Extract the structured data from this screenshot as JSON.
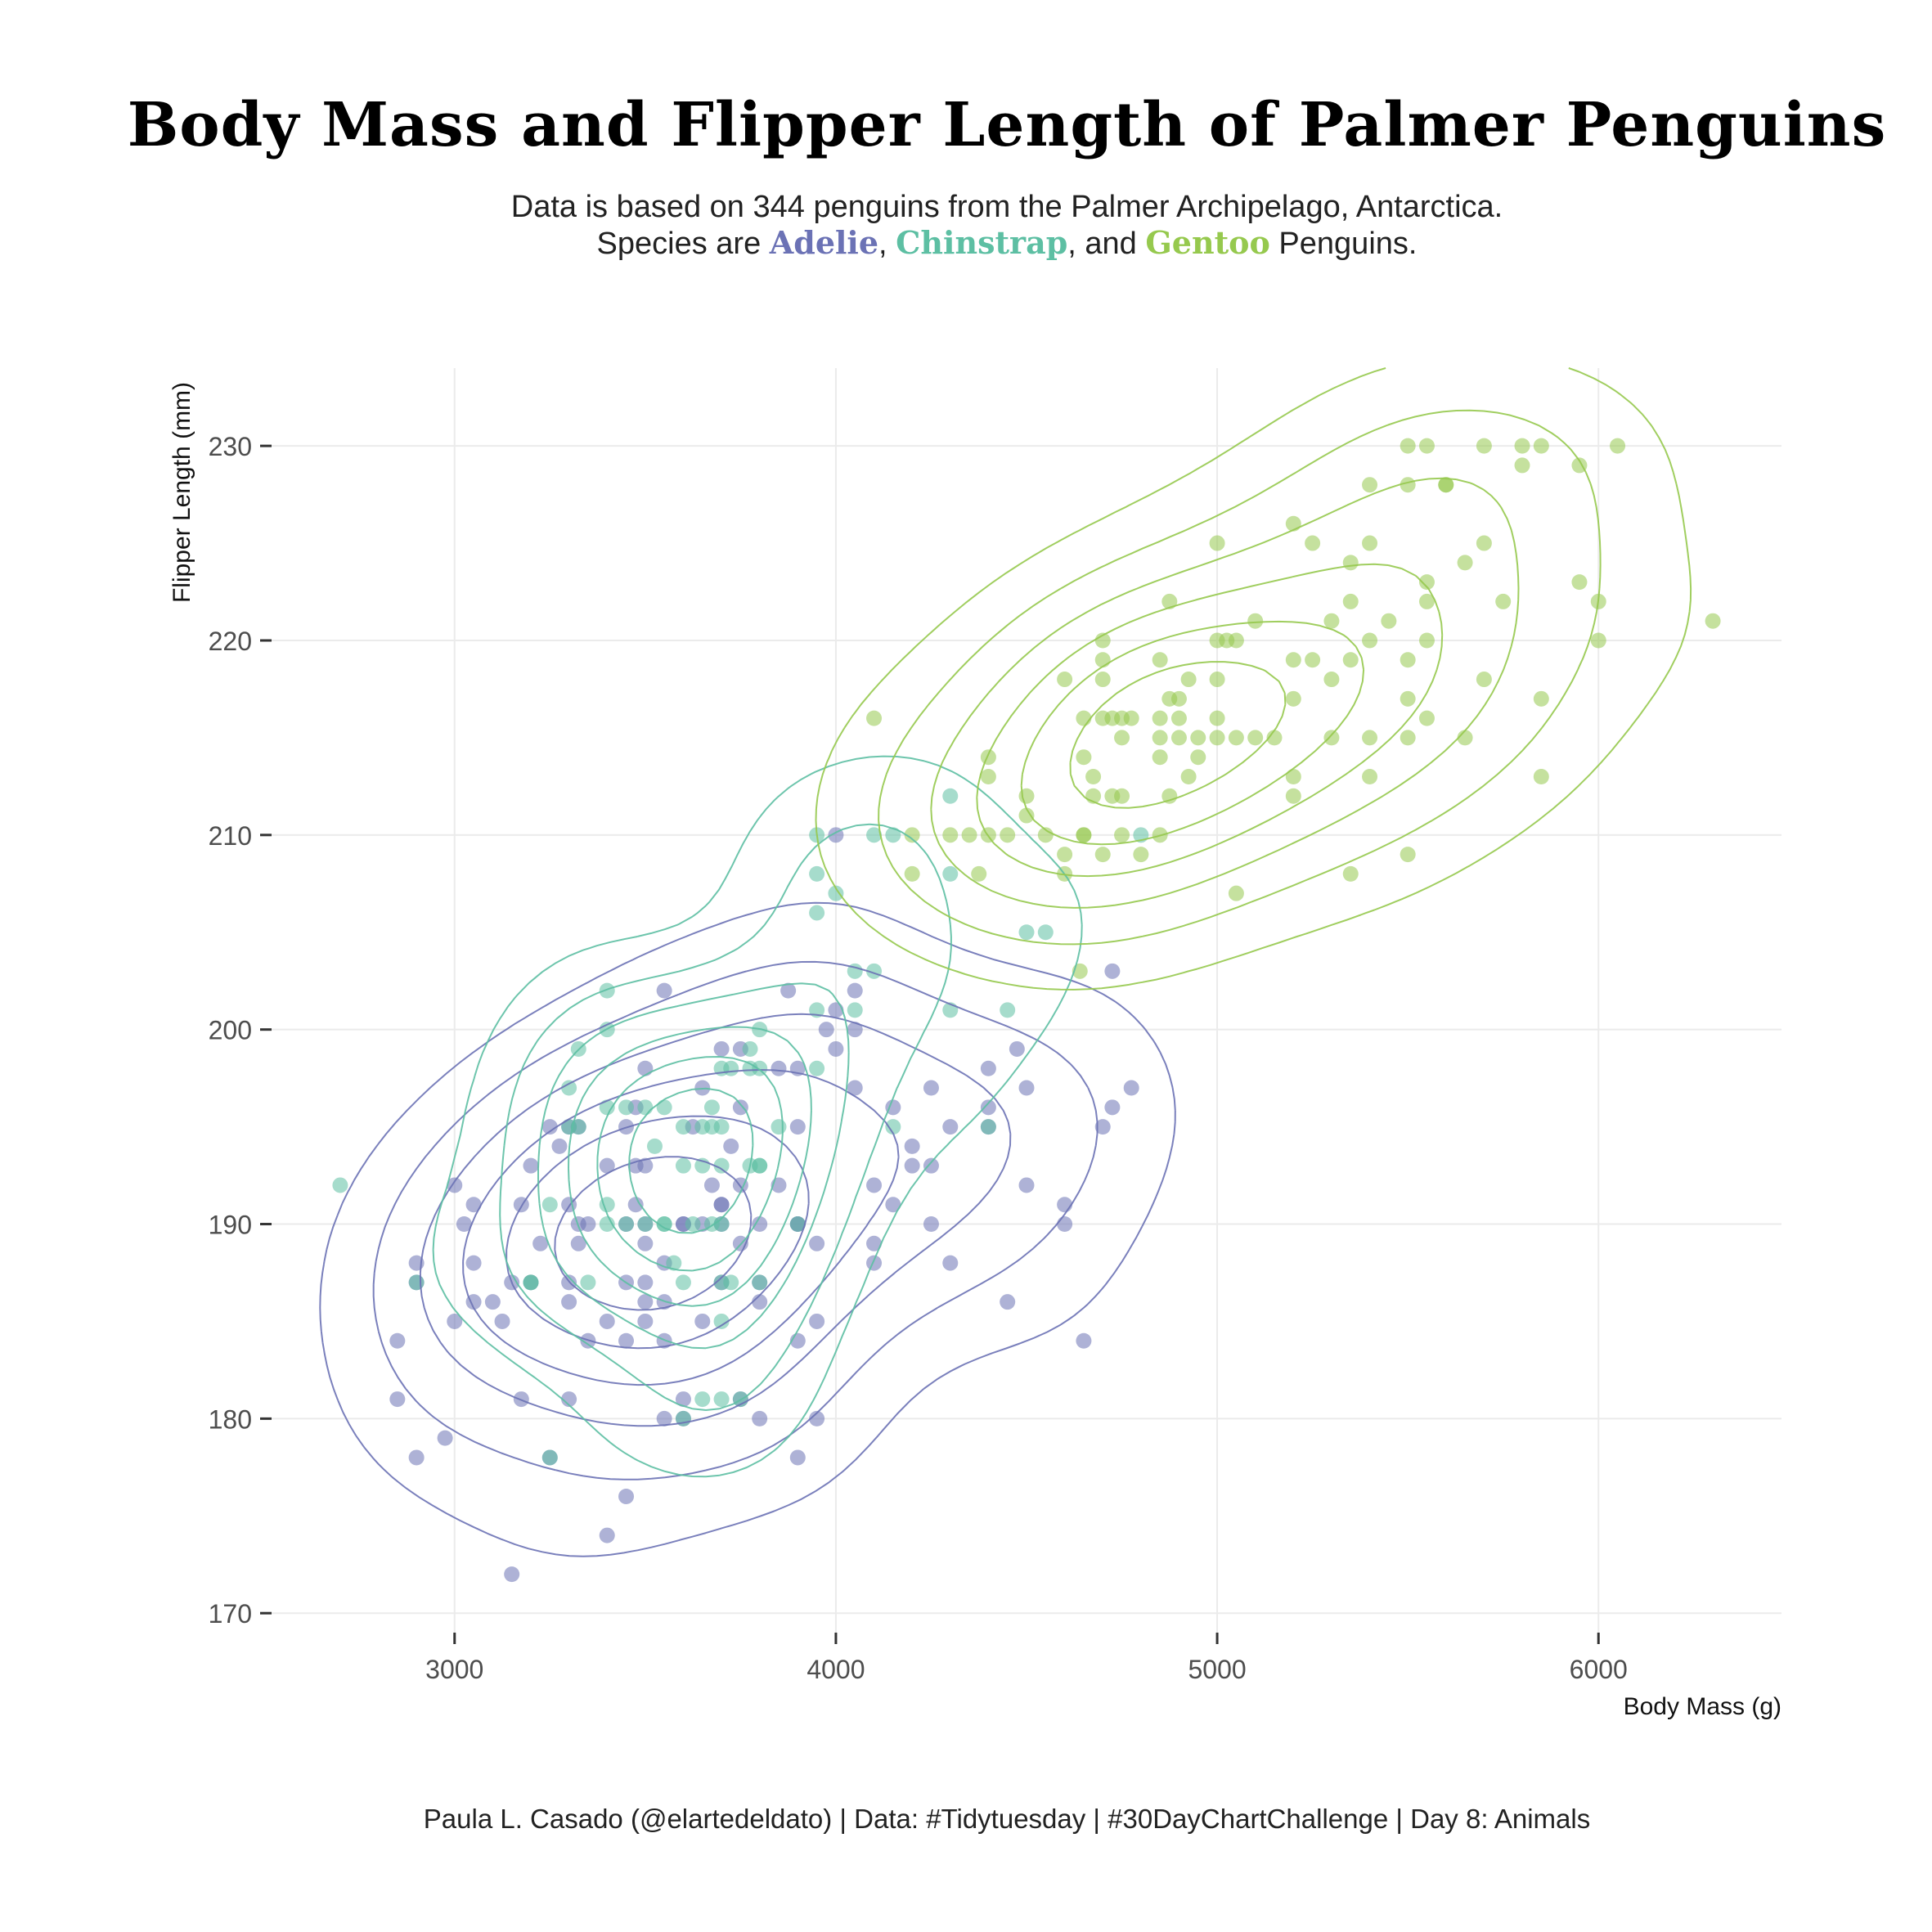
{
  "title": "Body Mass and Flipper Length of Palmer Penguins",
  "subtitle": {
    "line1": "Data is based on 344 penguins from the Palmer Archipelago, Antarctica.",
    "line2_prefix": "Species are ",
    "sep1": ", ",
    "sep2": ", and ",
    "line2_suffix": " Penguins."
  },
  "caption": "Paula L. Casado (@elartedeldato) | Data: #Tidytuesday | #30DayChartChallenge | Day 8: Animals",
  "colors": {
    "Adelie": "#6B72B5",
    "Chinstrap": "#5DBFA3",
    "Gentoo": "#96C94E",
    "grid": "#EBEBEB",
    "axis_text": "#4D4D4D"
  },
  "chart_data": {
    "type": "scatter",
    "xlabel": "Body Mass (g)",
    "ylabel": "Flipper Length (mm)",
    "xlim": [
      2520,
      6480
    ],
    "ylim": [
      169,
      234
    ],
    "xticks": [
      3000,
      4000,
      5000,
      6000
    ],
    "yticks": [
      170,
      180,
      190,
      200,
      210,
      220,
      230
    ],
    "grid": true,
    "legend": "none (species named in subtitle)",
    "series": [
      {
        "name": "Adelie",
        "color": "#6B72B5",
        "points": [
          [
            3150,
            172
          ],
          [
            3400,
            174
          ],
          [
            3450,
            176
          ],
          [
            2900,
            178
          ],
          [
            3250,
            178
          ],
          [
            3900,
            178
          ],
          [
            2975,
            179
          ],
          [
            3550,
            180
          ],
          [
            3600,
            180
          ],
          [
            3800,
            180
          ],
          [
            3950,
            180
          ],
          [
            2850,
            181
          ],
          [
            3175,
            181
          ],
          [
            3300,
            181
          ],
          [
            3600,
            181
          ],
          [
            3750,
            181
          ],
          [
            2850,
            184
          ],
          [
            3350,
            184
          ],
          [
            3450,
            184
          ],
          [
            3550,
            184
          ],
          [
            3900,
            184
          ],
          [
            4650,
            184
          ],
          [
            3400,
            185
          ],
          [
            3650,
            185
          ],
          [
            3950,
            185
          ],
          [
            3000,
            185
          ],
          [
            3125,
            185
          ],
          [
            3500,
            185
          ],
          [
            4450,
            186
          ],
          [
            3050,
            186
          ],
          [
            3100,
            186
          ],
          [
            3800,
            186
          ],
          [
            3300,
            186
          ],
          [
            3550,
            186
          ],
          [
            2900,
            187
          ],
          [
            3150,
            187
          ],
          [
            3450,
            187
          ],
          [
            3800,
            187
          ],
          [
            3200,
            187
          ],
          [
            3300,
            187
          ],
          [
            3500,
            187
          ],
          [
            3700,
            187
          ],
          [
            2900,
            188
          ],
          [
            3050,
            188
          ],
          [
            4100,
            188
          ],
          [
            4300,
            188
          ],
          [
            3225,
            189
          ],
          [
            3325,
            189
          ],
          [
            3500,
            189
          ],
          [
            3950,
            189
          ],
          [
            3750,
            189
          ],
          [
            3025,
            190
          ],
          [
            3325,
            190
          ],
          [
            3600,
            190
          ],
          [
            3650,
            190
          ],
          [
            3700,
            190
          ],
          [
            3900,
            190
          ],
          [
            4250,
            190
          ],
          [
            4600,
            190
          ],
          [
            3350,
            190
          ],
          [
            3450,
            190
          ],
          [
            3800,
            190
          ],
          [
            3300,
            191
          ],
          [
            3050,
            191
          ],
          [
            3175,
            191
          ],
          [
            3475,
            191
          ],
          [
            3700,
            191
          ],
          [
            4150,
            191
          ],
          [
            4600,
            191
          ],
          [
            3000,
            192
          ],
          [
            3850,
            192
          ],
          [
            4100,
            192
          ],
          [
            4500,
            192
          ],
          [
            3675,
            192
          ],
          [
            4200,
            193
          ],
          [
            3400,
            193
          ],
          [
            3475,
            193
          ],
          [
            3500,
            193
          ],
          [
            3200,
            193
          ],
          [
            4250,
            193
          ],
          [
            3275,
            194
          ],
          [
            3725,
            194
          ],
          [
            4200,
            194
          ],
          [
            3625,
            195
          ],
          [
            3325,
            195
          ],
          [
            3450,
            195
          ],
          [
            3300,
            195
          ],
          [
            3250,
            195
          ],
          [
            3900,
            195
          ],
          [
            4300,
            195
          ],
          [
            4700,
            195
          ],
          [
            4400,
            195
          ],
          [
            3750,
            196
          ],
          [
            4150,
            196
          ],
          [
            4400,
            196
          ],
          [
            4725,
            196
          ],
          [
            3475,
            196
          ],
          [
            3650,
            197
          ],
          [
            4050,
            197
          ],
          [
            4250,
            197
          ],
          [
            4500,
            197
          ],
          [
            4775,
            197
          ],
          [
            3500,
            198
          ],
          [
            3900,
            198
          ],
          [
            3850,
            198
          ],
          [
            4400,
            198
          ],
          [
            4475,
            199
          ],
          [
            3750,
            199
          ],
          [
            4000,
            199
          ],
          [
            3700,
            199
          ],
          [
            3975,
            200
          ],
          [
            4050,
            200
          ],
          [
            4000,
            201
          ],
          [
            3875,
            202
          ],
          [
            3550,
            202
          ],
          [
            4050,
            202
          ],
          [
            4725,
            203
          ],
          [
            4000,
            210
          ],
          [
            3900,
            190
          ],
          [
            3700,
            191
          ],
          [
            3750,
            192
          ],
          [
            3600,
            190
          ],
          [
            4100,
            189
          ],
          [
            3550,
            188
          ],
          [
            3500,
            186
          ],
          [
            3500,
            190
          ]
        ]
      },
      {
        "name": "Chinstrap",
        "color": "#5DBFA3",
        "points": [
          [
            2700,
            192
          ],
          [
            3250,
            178
          ],
          [
            2900,
            187
          ],
          [
            3200,
            187
          ],
          [
            3350,
            187
          ],
          [
            3250,
            191
          ],
          [
            3575,
            188
          ],
          [
            3650,
            181
          ],
          [
            3700,
            181
          ],
          [
            3700,
            185
          ],
          [
            3600,
            180
          ],
          [
            3750,
            181
          ],
          [
            3725,
            187
          ],
          [
            3400,
            190
          ],
          [
            3400,
            191
          ],
          [
            3450,
            190
          ],
          [
            3500,
            190
          ],
          [
            3550,
            190
          ],
          [
            3625,
            190
          ],
          [
            3675,
            190
          ],
          [
            3700,
            190
          ],
          [
            3800,
            187
          ],
          [
            3900,
            190
          ],
          [
            3300,
            195
          ],
          [
            3325,
            195
          ],
          [
            3400,
            196
          ],
          [
            3450,
            196
          ],
          [
            3500,
            196
          ],
          [
            3550,
            196
          ],
          [
            3525,
            194
          ],
          [
            3675,
            196
          ],
          [
            3700,
            198
          ],
          [
            3725,
            198
          ],
          [
            3775,
            198
          ],
          [
            3800,
            198
          ],
          [
            3950,
            198
          ],
          [
            3600,
            193
          ],
          [
            3650,
            193
          ],
          [
            3700,
            193
          ],
          [
            3775,
            193
          ],
          [
            3800,
            193
          ],
          [
            3850,
            195
          ],
          [
            3300,
            197
          ],
          [
            3325,
            199
          ],
          [
            3400,
            200
          ],
          [
            3400,
            202
          ],
          [
            3650,
            195
          ],
          [
            3700,
            195
          ],
          [
            3775,
            199
          ],
          [
            3800,
            200
          ],
          [
            3950,
            201
          ],
          [
            4050,
            201
          ],
          [
            4100,
            203
          ],
          [
            4050,
            203
          ],
          [
            3950,
            206
          ],
          [
            3950,
            208
          ],
          [
            3950,
            210
          ],
          [
            4000,
            207
          ],
          [
            4100,
            210
          ],
          [
            4150,
            210
          ],
          [
            4300,
            208
          ],
          [
            4300,
            212
          ],
          [
            4150,
            195
          ],
          [
            4300,
            201
          ],
          [
            4400,
            195
          ],
          [
            4450,
            201
          ],
          [
            4500,
            205
          ],
          [
            4550,
            205
          ],
          [
            4800,
            210
          ],
          [
            3600,
            187
          ],
          [
            3700,
            187
          ],
          [
            3800,
            193
          ],
          [
            3200,
            187
          ],
          [
            3600,
            195
          ],
          [
            3675,
            195
          ],
          [
            3550,
            190
          ]
        ]
      },
      {
        "name": "Gentoo",
        "color": "#96C94E",
        "points": [
          [
            4100,
            216
          ],
          [
            4200,
            210
          ],
          [
            4300,
            210
          ],
          [
            4350,
            210
          ],
          [
            4400,
            210
          ],
          [
            4450,
            210
          ],
          [
            4500,
            211
          ],
          [
            4550,
            210
          ],
          [
            4600,
            209
          ],
          [
            4650,
            210
          ],
          [
            4700,
            209
          ],
          [
            4750,
            210
          ],
          [
            4800,
            209
          ],
          [
            4850,
            210
          ],
          [
            4875,
            212
          ],
          [
            4900,
            215
          ],
          [
            4400,
            214
          ],
          [
            4400,
            213
          ],
          [
            4500,
            212
          ],
          [
            4650,
            214
          ],
          [
            4700,
            216
          ],
          [
            4750,
            215
          ],
          [
            4750,
            212
          ],
          [
            4850,
            214
          ],
          [
            4850,
            215
          ],
          [
            4900,
            217
          ],
          [
            4925,
            213
          ],
          [
            4950,
            214
          ],
          [
            4950,
            215
          ],
          [
            5000,
            215
          ],
          [
            5000,
            216
          ],
          [
            5000,
            218
          ],
          [
            5000,
            220
          ],
          [
            5050,
            215
          ],
          [
            5050,
            220
          ],
          [
            5100,
            215
          ],
          [
            5100,
            221
          ],
          [
            5150,
            215
          ],
          [
            5200,
            212
          ],
          [
            5200,
            213
          ],
          [
            5200,
            219
          ],
          [
            5250,
            219
          ],
          [
            5300,
            215
          ],
          [
            5300,
            218
          ],
          [
            5300,
            221
          ],
          [
            5350,
            219
          ],
          [
            5400,
            215
          ],
          [
            5400,
            213
          ],
          [
            5400,
            220
          ],
          [
            5400,
            225
          ],
          [
            5450,
            221
          ],
          [
            5500,
            209
          ],
          [
            5500,
            215
          ],
          [
            5500,
            217
          ],
          [
            5500,
            219
          ],
          [
            5550,
            216
          ],
          [
            5550,
            220
          ],
          [
            5550,
            222
          ],
          [
            5550,
            223
          ],
          [
            5600,
            228
          ],
          [
            5650,
            215
          ],
          [
            5650,
            224
          ],
          [
            5700,
            218
          ],
          [
            5700,
            225
          ],
          [
            5750,
            222
          ],
          [
            5800,
            229
          ],
          [
            5800,
            230
          ],
          [
            5850,
            213
          ],
          [
            5850,
            217
          ],
          [
            5850,
            230
          ],
          [
            5950,
            223
          ],
          [
            5950,
            229
          ],
          [
            6000,
            220
          ],
          [
            6000,
            222
          ],
          [
            6050,
            230
          ],
          [
            6300,
            221
          ],
          [
            4200,
            208
          ],
          [
            4375,
            208
          ],
          [
            4600,
            208
          ],
          [
            4650,
            210
          ],
          [
            4700,
            220
          ],
          [
            4700,
            218
          ],
          [
            4725,
            216
          ],
          [
            4750,
            216
          ],
          [
            4850,
            219
          ],
          [
            4875,
            217
          ],
          [
            4925,
            218
          ],
          [
            4875,
            222
          ],
          [
            5000,
            225
          ],
          [
            5200,
            226
          ],
          [
            5250,
            225
          ],
          [
            5350,
            222
          ],
          [
            5350,
            224
          ],
          [
            5350,
            208
          ],
          [
            5400,
            228
          ],
          [
            5500,
            228
          ],
          [
            5500,
            230
          ],
          [
            5550,
            230
          ],
          [
            5600,
            228
          ],
          [
            5700,
            230
          ],
          [
            5050,
            207
          ],
          [
            4700,
            219
          ],
          [
            4650,
            216
          ],
          [
            4600,
            218
          ],
          [
            4675,
            213
          ],
          [
            4675,
            212
          ],
          [
            4725,
            212
          ],
          [
            4775,
            216
          ],
          [
            4850,
            216
          ],
          [
            4900,
            216
          ],
          [
            5025,
            220
          ],
          [
            5200,
            217
          ],
          [
            4640,
            203
          ]
        ]
      }
    ]
  }
}
